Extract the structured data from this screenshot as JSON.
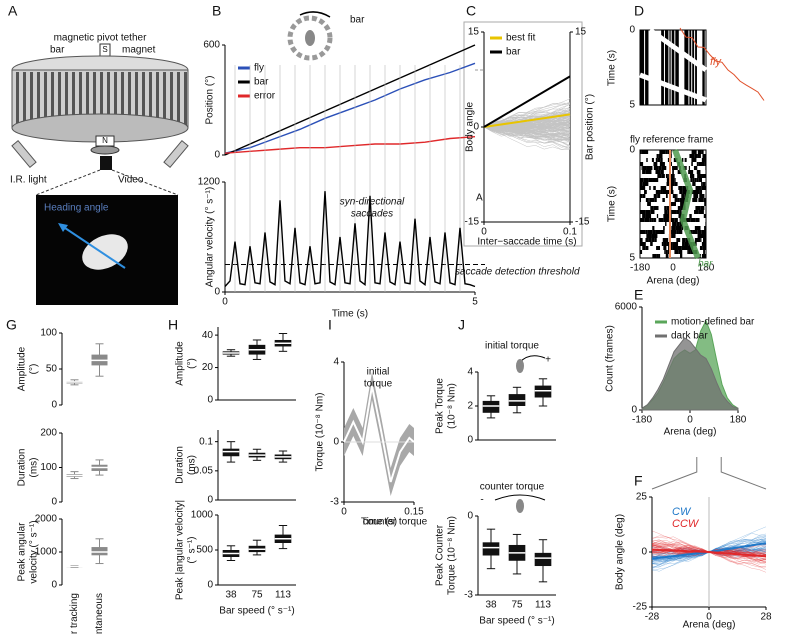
{
  "panel_letters": {
    "a": "A",
    "b": "B",
    "c": "C",
    "d": "D",
    "e": "E",
    "f": "F",
    "g": "G",
    "h": "H",
    "i": "I",
    "j": "J"
  },
  "panel_a": {
    "title": "magnetic pivot tether",
    "bar": "bar",
    "magnet": "magnet",
    "s": "S",
    "n": "N",
    "ir_light": "I.R. light",
    "video": "Video",
    "heading": "Heading angle"
  },
  "panel_d": {
    "top_ylabel": "Time (s)",
    "top_yticks": [
      0,
      5
    ],
    "fly": "fly",
    "subtitle": "fly reference frame",
    "bottom_ylabel": "Time (s)",
    "bottom_yticks": [
      0,
      5
    ],
    "xticks": [
      -180,
      0,
      180
    ],
    "xlabel": "Arena (deg)",
    "bar": "bar"
  },
  "chart_data": [
    {
      "type": "line",
      "ylabel": "Position (°)",
      "ylim": [
        0,
        600
      ],
      "yticks": [
        0,
        600
      ],
      "xlim": [
        0,
        5
      ],
      "annotations": [
        "bar"
      ],
      "x": [
        0,
        0.5,
        1,
        1.5,
        2,
        2.5,
        3,
        3.5,
        4,
        4.5,
        5
      ],
      "series": [
        {
          "name": "fly",
          "color": "#2b50b8",
          "values": [
            10,
            40,
            90,
            140,
            200,
            250,
            300,
            360,
            410,
            450,
            500
          ]
        },
        {
          "name": "bar",
          "color": "#000000",
          "values": [
            0,
            60,
            120,
            180,
            240,
            300,
            360,
            420,
            480,
            540,
            600
          ]
        },
        {
          "name": "error",
          "color": "#e0282a",
          "values": [
            10,
            20,
            30,
            40,
            40,
            50,
            60,
            60,
            70,
            90,
            100
          ]
        }
      ]
    },
    {
      "type": "line",
      "ylabel": "Angular velocity (° s⁻¹)",
      "xlabel": "Time (s)",
      "ylim": [
        0,
        1200
      ],
      "yticks": [
        0,
        1200
      ],
      "xlim": [
        0,
        5
      ],
      "xticks": [
        0,
        5
      ],
      "threshold": 300,
      "annotations": [
        "syn-directional",
        "saccades",
        "saccade detection threshold"
      ],
      "x": [
        0,
        0.1,
        0.2,
        0.3,
        0.4,
        0.5,
        0.6,
        0.7,
        0.8,
        0.9,
        1,
        1.1,
        1.2,
        1.3,
        1.4,
        1.5,
        1.6,
        1.7,
        1.8,
        1.9,
        2,
        2.1,
        2.2,
        2.3,
        2.4,
        2.5,
        2.6,
        2.7,
        2.8,
        2.9,
        3,
        3.1,
        3.2,
        3.3,
        3.4,
        3.5,
        3.6,
        3.7,
        3.8,
        3.9,
        4,
        4.1,
        4.2,
        4.3,
        4.4,
        4.5,
        4.6,
        4.7,
        4.8,
        4.9,
        5
      ],
      "series": [
        {
          "name": "angular velocity",
          "color": "#000000",
          "values": [
            60,
            120,
            550,
            90,
            80,
            500,
            100,
            90,
            650,
            110,
            80,
            1000,
            120,
            90,
            700,
            100,
            80,
            500,
            90,
            100,
            1100,
            110,
            80,
            600,
            100,
            90,
            750,
            120,
            80,
            1050,
            100,
            90,
            650,
            110,
            80,
            550,
            100,
            90,
            800,
            120,
            80,
            600,
            110,
            90,
            650,
            100,
            80,
            700,
            90,
            80,
            60
          ]
        }
      ]
    },
    {
      "type": "line",
      "ylabel": "Body angle",
      "y2label": "Bar position (°)",
      "xlabel": "Inter−saccade time (s)",
      "ylim": [
        -15,
        15
      ],
      "yticks": [
        -15,
        0,
        15
      ],
      "y2lim": [
        -15,
        15
      ],
      "y2ticks": [
        -15,
        15
      ],
      "xlim": [
        0,
        0.1
      ],
      "xticks": [
        0,
        0.1
      ],
      "annotations": [
        "A"
      ],
      "x": [
        0,
        0.1
      ],
      "series": [
        {
          "name": "best fit",
          "color": "#e8c400",
          "values": [
            0,
            2
          ]
        },
        {
          "name": "bar",
          "color": "#000000",
          "values": [
            0,
            8
          ]
        }
      ]
    },
    {
      "type": "area",
      "ylabel": "Count (frames)",
      "xlabel": "Arena (deg)",
      "ylim": [
        0,
        6000
      ],
      "yticks": [
        0,
        6000
      ],
      "xlim": [
        -180,
        180
      ],
      "xticks": [
        -180,
        0,
        180
      ],
      "x": [
        -180,
        -160,
        -140,
        -120,
        -100,
        -80,
        -60,
        -40,
        -20,
        0,
        20,
        40,
        60,
        80,
        100,
        120,
        140,
        160,
        180
      ],
      "series": [
        {
          "name": "motion-defined bar",
          "color": "#5aa65a",
          "values": [
            100,
            300,
            600,
            1000,
            1600,
            2300,
            3000,
            3300,
            3500,
            3300,
            3500,
            4600,
            5200,
            4400,
            2900,
            1500,
            700,
            300,
            100
          ]
        },
        {
          "name": "dark bar",
          "color": "#707070",
          "values": [
            100,
            300,
            700,
            1200,
            1800,
            2600,
            3400,
            3800,
            4200,
            4000,
            3600,
            3200,
            3000,
            2400,
            1600,
            900,
            500,
            200,
            100
          ]
        }
      ]
    },
    {
      "type": "line",
      "ylabel": "Body angle (deg)",
      "xlabel": "Arena (deg)",
      "ylim": [
        -25,
        25
      ],
      "yticks": [
        -25,
        0,
        25
      ],
      "xlim": [
        -28,
        28
      ],
      "xticks": [
        -28,
        0,
        28
      ],
      "x": [
        -28,
        0,
        28
      ],
      "series": [
        {
          "name": "CW",
          "color": "#1f78c8",
          "values": [
            -3,
            0,
            4
          ]
        },
        {
          "name": "CCW",
          "color": "#e0282a",
          "values": [
            1,
            0,
            -2
          ]
        }
      ]
    },
    {
      "type": "box",
      "ylabel": [
        "Amplitude",
        "(°)"
      ],
      "ylim": [
        0,
        100
      ],
      "yticks": [
        0,
        50,
        100
      ],
      "color": "#8a8a8a",
      "values": [
        [
          28,
          30,
          32,
          33,
          35
        ],
        [
          40,
          55,
          62,
          70,
          85
        ]
      ]
    },
    {
      "type": "box",
      "ylabel": [
        "Duration",
        "(ms)"
      ],
      "ylim": [
        0,
        200
      ],
      "yticks": [
        0,
        100,
        200
      ],
      "color": "#8a8a8a",
      "values": [
        [
          68,
          73,
          77,
          81,
          88
        ],
        [
          78,
          90,
          100,
          108,
          122
        ]
      ]
    },
    {
      "type": "box",
      "ylabel": [
        "Peak angular",
        "velocity (° s⁻¹)"
      ],
      "ylim": [
        0,
        2000
      ],
      "yticks": [
        0,
        1000,
        2000
      ],
      "color": "#8a8a8a",
      "categories": [
        "Bar tracking",
        "Spontaneous"
      ],
      "values": [
        [
          530,
          545,
          560,
          570,
          585
        ],
        [
          650,
          900,
          1000,
          1150,
          1400
        ]
      ]
    },
    {
      "type": "box",
      "ylabel": [
        "Amplitude",
        "(°)"
      ],
      "ylim": [
        0,
        45
      ],
      "yticks": [
        0,
        20,
        40
      ],
      "color": "#111111",
      "values": [
        [
          27,
          28,
          29,
          30,
          31
        ],
        [
          25,
          28,
          31,
          34,
          37
        ],
        [
          30,
          33,
          35,
          37,
          41
        ]
      ]
    },
    {
      "type": "box",
      "ylabel": [
        "Duration",
        "(ms)"
      ],
      "ylim": [
        0,
        0.12
      ],
      "yticks": [
        0,
        0.05,
        0.1
      ],
      "color": "#111111",
      "values": [
        [
          0.065,
          0.075,
          0.083,
          0.088,
          0.1
        ],
        [
          0.068,
          0.073,
          0.077,
          0.081,
          0.087
        ],
        [
          0.065,
          0.07,
          0.074,
          0.078,
          0.084
        ]
      ]
    },
    {
      "type": "box",
      "ylabel": [
        "Peak |angular velocity|",
        "(° s⁻¹)"
      ],
      "xlabel": "Bar speed (° s⁻¹)",
      "ylim": [
        0,
        1000
      ],
      "yticks": [
        0,
        500,
        1000
      ],
      "color": "#111111",
      "categories": [
        "38",
        "75",
        "113"
      ],
      "values": [
        [
          350,
          400,
          450,
          500,
          560
        ],
        [
          430,
          470,
          510,
          560,
          640
        ],
        [
          520,
          600,
          660,
          720,
          850
        ]
      ]
    },
    {
      "type": "line",
      "ylabel": "Torque (10⁻⁸ Nm)",
      "xlabel": "Time (s)",
      "ylim": [
        -3,
        4
      ],
      "yticks": [
        -3,
        0,
        4
      ],
      "xlim": [
        0,
        0.15
      ],
      "xticks": [
        0,
        0.15
      ],
      "annotations": [
        "initial",
        "torque",
        "counter torque"
      ],
      "x": [
        0,
        0.02,
        0.04,
        0.06,
        0.08,
        0.1,
        0.12,
        0.14,
        0.15
      ],
      "series": [
        {
          "name": "torque",
          "color": "#ffffff",
          "values": [
            0,
            1,
            0,
            2.8,
            0.5,
            -2,
            -0.5,
            0.2,
            0
          ]
        }
      ]
    },
    {
      "type": "box",
      "ylabel": [
        "Peak Torque",
        "(10⁻⁸ Nm)"
      ],
      "ylim": [
        0,
        4
      ],
      "yticks": [
        0,
        2,
        4
      ],
      "color": "#111111",
      "annotations": [
        "initial torque",
        "+"
      ],
      "values": [
        [
          1.3,
          1.6,
          2,
          2.3,
          2.6
        ],
        [
          1.6,
          2,
          2.3,
          2.7,
          3.1
        ],
        [
          2,
          2.5,
          2.9,
          3.2,
          3.6
        ]
      ]
    },
    {
      "type": "box",
      "ylabel": [
        "Peak Counter",
        "Torque (10⁻⁸ Nm)"
      ],
      "xlabel": "Bar speed (° s⁻¹)",
      "ylim": [
        -3,
        0
      ],
      "yticks": [
        -3,
        0
      ],
      "color": "#111111",
      "annotations": [
        "counter torque",
        "-"
      ],
      "categories": [
        "38",
        "75",
        "113"
      ],
      "values": [
        [
          -2,
          -1.5,
          -1.2,
          -1,
          -0.5
        ],
        [
          -2.2,
          -1.7,
          -1.4,
          -1.1,
          -0.7
        ],
        [
          -2.5,
          -1.9,
          -1.6,
          -1.4,
          -0.9
        ]
      ]
    }
  ]
}
